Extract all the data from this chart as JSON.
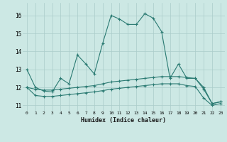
{
  "xlabel": "Humidex (Indice chaleur)",
  "ylabel": "",
  "bg_color": "#cce8e4",
  "grid_color": "#aaccca",
  "line_color": "#2a7a72",
  "xlim": [
    -0.5,
    23.5
  ],
  "ylim": [
    10.7,
    16.7
  ],
  "yticks": [
    11,
    12,
    13,
    14,
    15,
    16
  ],
  "xticks": [
    0,
    1,
    2,
    3,
    4,
    5,
    6,
    7,
    8,
    9,
    10,
    11,
    12,
    13,
    14,
    15,
    16,
    17,
    18,
    19,
    20,
    21,
    22,
    23
  ],
  "series1": [
    13.0,
    12.0,
    11.8,
    11.75,
    12.5,
    12.2,
    13.8,
    13.3,
    12.75,
    14.45,
    16.0,
    15.8,
    15.5,
    15.5,
    16.1,
    15.85,
    15.1,
    12.5,
    13.3,
    12.5,
    12.5,
    12.0,
    11.1,
    11.2
  ],
  "series2": [
    12.0,
    11.9,
    11.85,
    11.85,
    11.9,
    11.95,
    12.0,
    12.05,
    12.1,
    12.2,
    12.3,
    12.35,
    12.4,
    12.45,
    12.5,
    12.55,
    12.6,
    12.6,
    12.6,
    12.55,
    12.5,
    11.9,
    11.1,
    11.2
  ],
  "series3": [
    12.0,
    11.55,
    11.5,
    11.5,
    11.55,
    11.6,
    11.65,
    11.7,
    11.75,
    11.82,
    11.9,
    11.95,
    12.0,
    12.05,
    12.1,
    12.15,
    12.2,
    12.2,
    12.2,
    12.1,
    12.05,
    11.4,
    11.0,
    11.1
  ]
}
